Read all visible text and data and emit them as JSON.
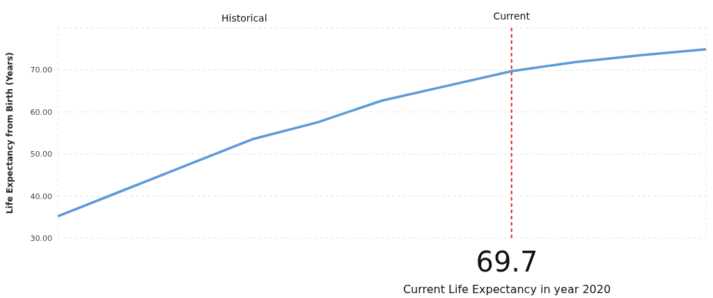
{
  "chart_data": {
    "type": "line",
    "ylabel": "Life Expectancy from Birth (Years)",
    "categories": [
      null,
      null,
      null,
      null,
      null,
      null,
      null,
      null,
      null,
      null,
      null
    ],
    "series": [
      {
        "color": "#5b9bd5",
        "values": [
          35.2,
          41.3,
          47.4,
          53.5,
          57.5,
          62.7,
          66.2,
          69.7,
          71.9,
          73.5,
          74.9
        ]
      }
    ],
    "ylim": [
      30,
      80
    ],
    "yticks": [
      {
        "value": 30,
        "label": "30.00"
      },
      {
        "value": 40,
        "label": "40.00"
      },
      {
        "value": 50,
        "label": "50.00"
      },
      {
        "value": 60,
        "label": "60.00"
      },
      {
        "value": 70,
        "label": "70.00"
      },
      {
        "value": 80,
        "label": null
      }
    ],
    "grid": true,
    "marker": "none",
    "line_style": "solid",
    "annotations": [
      "Historical",
      "Current",
      "69.7",
      "Current Life Expectancy in year 2020"
    ]
  }
}
